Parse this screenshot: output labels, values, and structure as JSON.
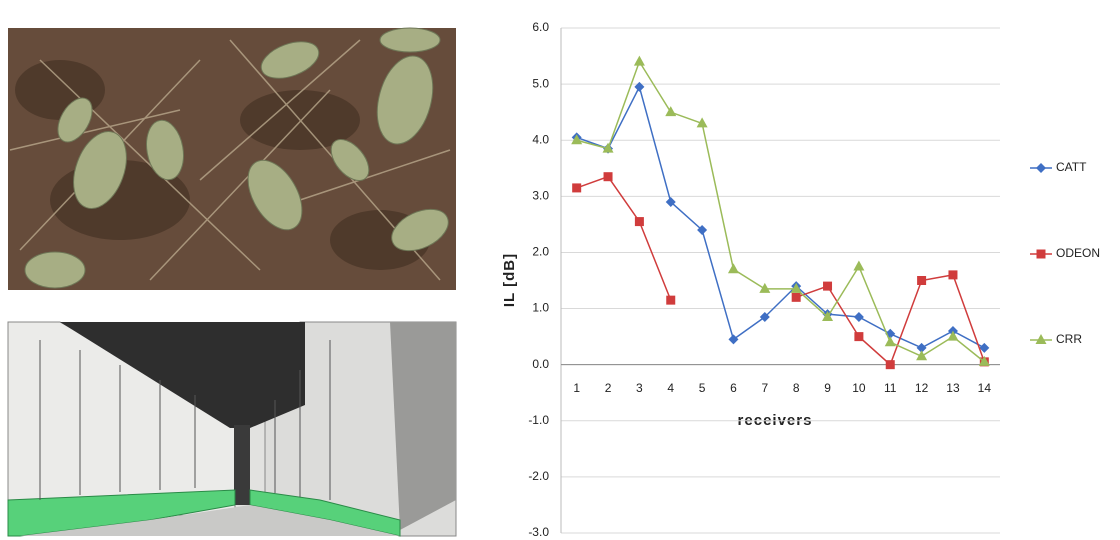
{
  "chart_data": {
    "type": "line",
    "x_label": "receivers",
    "y_label": "IL [dB]",
    "categories": [
      "1",
      "2",
      "3",
      "4",
      "5",
      "6",
      "7",
      "8",
      "9",
      "10",
      "11",
      "12",
      "13",
      "14"
    ],
    "series": [
      {
        "name": "CATT",
        "color": "#3f6fc4",
        "marker": "diamond",
        "values": [
          4.05,
          3.85,
          4.95,
          2.9,
          2.4,
          0.45,
          0.85,
          1.4,
          0.9,
          0.85,
          0.55,
          0.3,
          0.6,
          0.3
        ]
      },
      {
        "name": "ODEON",
        "color": "#d03c3c",
        "marker": "square",
        "values": [
          3.15,
          3.35,
          2.55,
          1.15,
          null,
          null,
          null,
          1.2,
          1.4,
          0.5,
          0.0,
          1.5,
          1.6,
          0.05
        ]
      },
      {
        "name": "CRR",
        "color": "#9bbb59",
        "marker": "triangle",
        "values": [
          4.0,
          3.85,
          5.4,
          4.5,
          4.3,
          1.7,
          1.35,
          1.35,
          0.85,
          1.75,
          0.4,
          0.15,
          0.5,
          0.05
        ]
      }
    ],
    "ylim": [
      -3,
      6
    ],
    "yticks": [
      {
        "value": -3,
        "label": "-3.0"
      },
      {
        "value": -2,
        "label": "-2.0"
      },
      {
        "value": -1,
        "label": "-1.0"
      },
      {
        "value": 0,
        "label": "0.0"
      },
      {
        "value": 1,
        "label": "1.0"
      },
      {
        "value": 2,
        "label": "2.0"
      },
      {
        "value": 3,
        "label": "3.0"
      },
      {
        "value": 4,
        "label": "4.0"
      },
      {
        "value": 5,
        "label": "5.0"
      },
      {
        "value": 6,
        "label": "6.0"
      }
    ],
    "grid": true,
    "legend": "right"
  }
}
